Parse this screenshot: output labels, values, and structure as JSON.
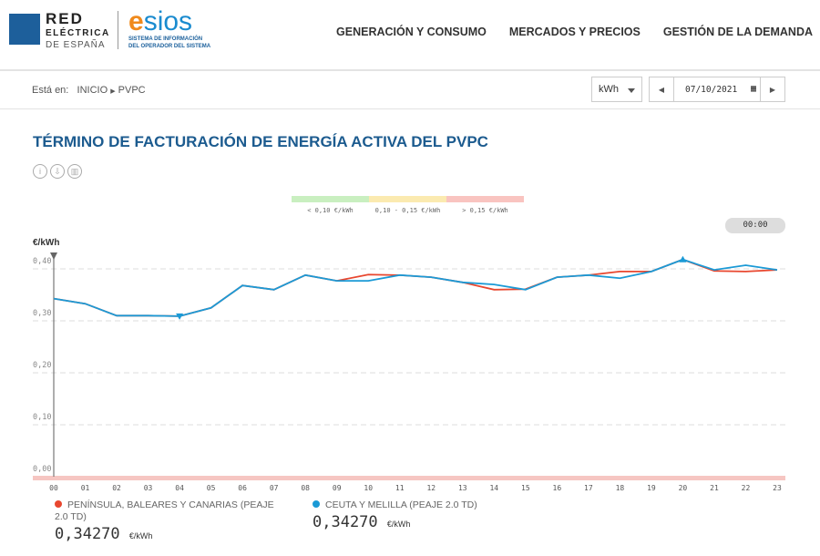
{
  "header": {
    "brand1": [
      "RED",
      "ELÉCTRICA",
      "DE ESPAÑA"
    ],
    "brand2": "esios",
    "brand2_sub": [
      "SISTEMA DE INFORMACIÓN",
      "DEL OPERADOR DEL SISTEMA"
    ],
    "nav": [
      "GENERACIÓN Y CONSUMO",
      "MERCADOS Y PRECIOS",
      "GESTIÓN DE LA DEMANDA"
    ]
  },
  "breadcrumb": {
    "prefix": "Está en:",
    "items": [
      "INICIO",
      "PVPC"
    ]
  },
  "controls": {
    "unit": "kWh",
    "date": "07/10/2021",
    "time": "00:00"
  },
  "page_title": "TÉRMINO DE FACTURACIÓN DE ENERGÍA ACTIVA DEL PVPC",
  "bands": [
    {
      "label": "< 0,10 €/kWh",
      "color": "#c9efc0"
    },
    {
      "label": "0,10 - 0,15 €/kWh",
      "color": "#fbeab0"
    },
    {
      "label": "> 0,15 €/kWh",
      "color": "#f9c4c0"
    }
  ],
  "chart_data": {
    "type": "line",
    "ylabel": "€/kWh",
    "ylim": [
      0,
      0.4
    ],
    "yticks": [
      "0,00",
      "0,10",
      "0,20",
      "0,30",
      "0,40"
    ],
    "categories": [
      "00",
      "01",
      "02",
      "03",
      "04",
      "05",
      "06",
      "07",
      "08",
      "09",
      "10",
      "11",
      "12",
      "13",
      "14",
      "15",
      "16",
      "17",
      "18",
      "19",
      "20",
      "21",
      "22",
      "23"
    ],
    "series": [
      {
        "name": "PENÍNSULA, BALEARES Y CANARIAS (PEAJE 2.0 TD)",
        "color": "#e8472f",
        "value": "0,34270",
        "unit": "€/kWh",
        "values": [
          0.3427,
          0.333,
          0.31,
          0.31,
          0.309,
          0.325,
          0.368,
          0.36,
          0.388,
          0.377,
          0.389,
          0.388,
          0.384,
          0.374,
          0.36,
          0.361,
          0.384,
          0.388,
          0.395,
          0.395,
          0.418,
          0.396,
          0.395,
          0.398
        ]
      },
      {
        "name": "CEUTA Y MELILLA (PEAJE 2.0 TD)",
        "color": "#1b9ad6",
        "value": "0,34270",
        "unit": "€/kWh",
        "values": [
          0.3427,
          0.333,
          0.31,
          0.31,
          0.309,
          0.325,
          0.368,
          0.36,
          0.388,
          0.377,
          0.377,
          0.388,
          0.384,
          0.374,
          0.37,
          0.36,
          0.384,
          0.388,
          0.382,
          0.395,
          0.418,
          0.398,
          0.407,
          0.398
        ]
      }
    ]
  }
}
